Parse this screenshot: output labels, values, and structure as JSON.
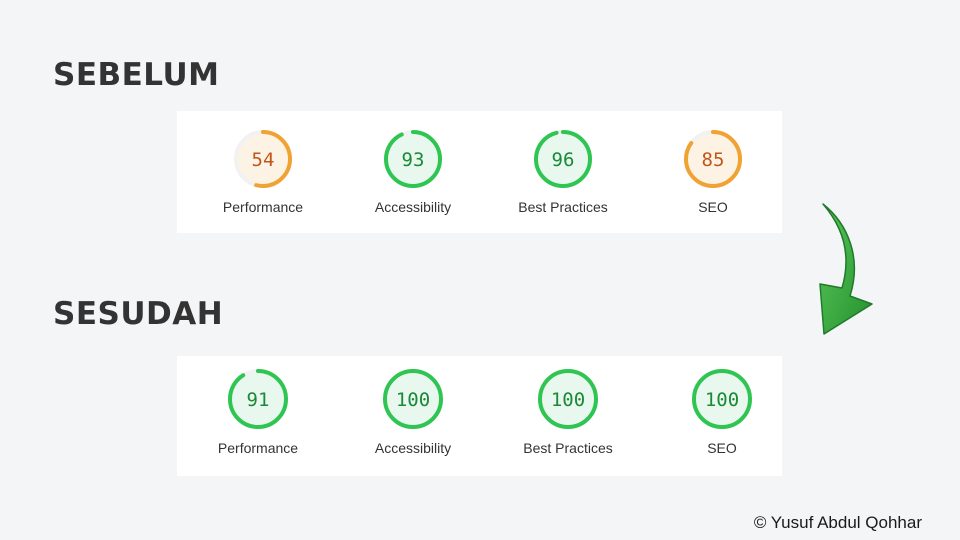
{
  "before": {
    "title": "SEBELUM",
    "scores": [
      {
        "label": "Performance",
        "value": 54,
        "status": "average"
      },
      {
        "label": "Accessibility",
        "value": 93,
        "status": "pass"
      },
      {
        "label": "Best Practices",
        "value": 96,
        "status": "pass"
      },
      {
        "label": "SEO",
        "value": 85,
        "status": "average"
      }
    ]
  },
  "after": {
    "title": "SESUDAH",
    "scores": [
      {
        "label": "Performance",
        "value": 91,
        "status": "pass"
      },
      {
        "label": "Accessibility",
        "value": 100,
        "status": "pass"
      },
      {
        "label": "Best Practices",
        "value": 100,
        "status": "pass"
      },
      {
        "label": "SEO",
        "value": 100,
        "status": "pass"
      }
    ]
  },
  "colors": {
    "pass_ring": "#2fc552",
    "pass_fill": "#e9f8ee",
    "pass_text": "#198a36",
    "average_ring": "#f0a232",
    "average_fill": "#fdf3e5",
    "average_text": "#c0561a",
    "track": "#f2f2f2",
    "arrow": "#2e9e3c"
  },
  "arrow_icon": "curved-down-arrow-icon",
  "credit": "© Yusuf Abdul Qohhar"
}
